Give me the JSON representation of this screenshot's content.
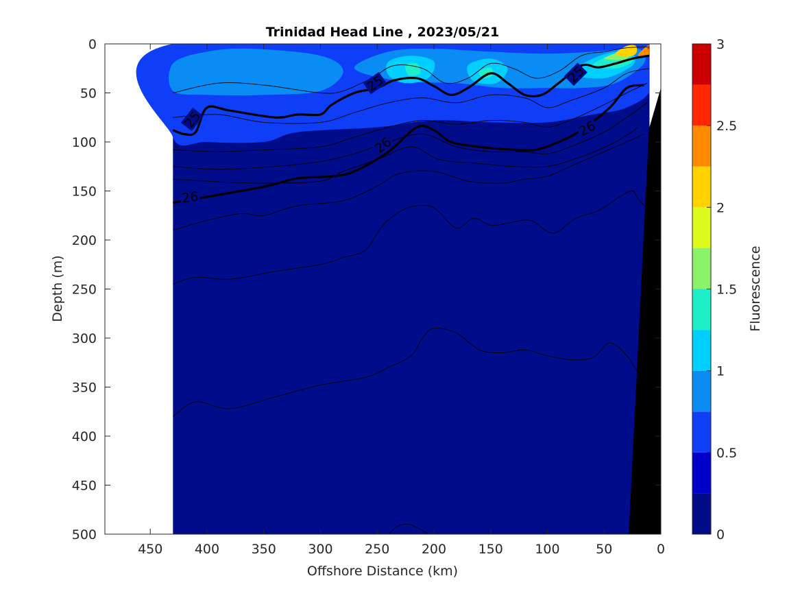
{
  "chart_data": {
    "type": "contour",
    "title": "Trinidad Head Line , 2023/05/21",
    "xlabel": "Offshore Distance (km)",
    "ylabel": "Depth (m)",
    "xlim": [
      490,
      0
    ],
    "ylim": [
      0,
      500
    ],
    "x_direction": "reversed",
    "y_direction": "reversed",
    "x_ticks": [
      450,
      400,
      350,
      300,
      250,
      200,
      150,
      100,
      50,
      0
    ],
    "y_ticks": [
      0,
      50,
      100,
      150,
      200,
      250,
      300,
      350,
      400,
      450,
      500
    ],
    "colorbar": {
      "label": "Fluorescence",
      "range": [
        0,
        3
      ],
      "ticks": [
        "0",
        "0.5",
        "1",
        "1.5",
        "2",
        "2.5",
        "3"
      ],
      "levels": [
        0,
        0.25,
        0.5,
        0.75,
        1,
        1.25,
        1.5,
        1.75,
        2,
        2.25,
        2.5,
        2.75,
        3
      ],
      "colors": [
        "#000c8a",
        "#0000cd",
        "#0f3ef7",
        "#0a8cf5",
        "#00cfff",
        "#1eefc8",
        "#8bf36a",
        "#dcfb1c",
        "#ffd200",
        "#ff8c00",
        "#ff2800",
        "#cc0000"
      ]
    },
    "data_extent_x": [
      430,
      0
    ],
    "fluorescence_patches": [
      {
        "level": 0.5,
        "points": [
          [
            430,
            0
          ],
          [
            8,
            0
          ],
          [
            8,
            45
          ],
          [
            30,
            65
          ],
          [
            60,
            72
          ],
          [
            100,
            80
          ],
          [
            150,
            80
          ],
          [
            200,
            78
          ],
          [
            250,
            85
          ],
          [
            320,
            90
          ],
          [
            350,
            100
          ],
          [
            400,
            100
          ],
          [
            430,
            95
          ]
        ]
      },
      {
        "level": 0.75,
        "points": [
          [
            430,
            20
          ],
          [
            400,
            8
          ],
          [
            360,
            5
          ],
          [
            300,
            12
          ],
          [
            280,
            28
          ],
          [
            300,
            48
          ],
          [
            350,
            52
          ],
          [
            400,
            52
          ],
          [
            430,
            48
          ]
        ]
      },
      {
        "level": 0.75,
        "points": [
          [
            270,
            25
          ],
          [
            240,
            8
          ],
          [
            200,
            5
          ],
          [
            150,
            8
          ],
          [
            100,
            10
          ],
          [
            60,
            8
          ],
          [
            20,
            5
          ],
          [
            15,
            20
          ],
          [
            40,
            40
          ],
          [
            70,
            45
          ],
          [
            100,
            45
          ],
          [
            140,
            45
          ],
          [
            180,
            40
          ],
          [
            230,
            38
          ]
        ]
      },
      {
        "level": 1,
        "points": [
          [
            240,
            18
          ],
          [
            220,
            12
          ],
          [
            200,
            18
          ],
          [
            205,
            35
          ],
          [
            225,
            40
          ],
          [
            240,
            32
          ]
        ]
      },
      {
        "level": 1,
        "points": [
          [
            170,
            22
          ],
          [
            150,
            15
          ],
          [
            135,
            25
          ],
          [
            145,
            40
          ],
          [
            165,
            38
          ]
        ]
      },
      {
        "level": 1,
        "points": [
          [
            80,
            30
          ],
          [
            60,
            15
          ],
          [
            40,
            8
          ],
          [
            25,
            10
          ],
          [
            25,
            22
          ],
          [
            50,
            35
          ]
        ]
      },
      {
        "level": 1.25,
        "points": [
          [
            225,
            22
          ],
          [
            215,
            20
          ],
          [
            212,
            30
          ],
          [
            222,
            32
          ]
        ]
      },
      {
        "level": 1.25,
        "points": [
          [
            160,
            28
          ],
          [
            150,
            24
          ],
          [
            148,
            32
          ],
          [
            157,
            35
          ]
        ]
      },
      {
        "level": 1.25,
        "points": [
          [
            60,
            22
          ],
          [
            45,
            12
          ],
          [
            30,
            10
          ],
          [
            25,
            18
          ],
          [
            40,
            25
          ]
        ]
      },
      {
        "level": 1.5,
        "points": [
          [
            50,
            15
          ],
          [
            35,
            8
          ],
          [
            28,
            10
          ],
          [
            32,
            16
          ]
        ]
      },
      {
        "level": 2,
        "points": [
          [
            40,
            10
          ],
          [
            30,
            2
          ],
          [
            22,
            2
          ],
          [
            22,
            10
          ],
          [
            30,
            13
          ]
        ]
      },
      {
        "level": 2.25,
        "points": [
          [
            20,
            12
          ],
          [
            12,
            2
          ],
          [
            8,
            2
          ],
          [
            8,
            12
          ]
        ]
      },
      {
        "level": 2.5,
        "points": [
          [
            12,
            5
          ],
          [
            8,
            0
          ],
          [
            8,
            5
          ]
        ]
      }
    ],
    "density_contours": [
      {
        "label": "25",
        "bold": true,
        "points": [
          [
            430,
            88
          ],
          [
            420,
            92
          ],
          [
            410,
            90
          ],
          [
            400,
            65
          ],
          [
            380,
            68
          ],
          [
            340,
            75
          ],
          [
            320,
            72
          ],
          [
            300,
            72
          ],
          [
            290,
            62
          ],
          [
            270,
            50
          ],
          [
            250,
            45
          ],
          [
            235,
            37
          ],
          [
            215,
            35
          ],
          [
            200,
            43
          ],
          [
            185,
            52
          ],
          [
            170,
            45
          ],
          [
            150,
            30
          ],
          [
            135,
            40
          ],
          [
            120,
            52
          ],
          [
            105,
            52
          ],
          [
            90,
            40
          ],
          [
            70,
            22
          ],
          [
            55,
            24
          ],
          [
            40,
            20
          ],
          [
            25,
            15
          ],
          [
            10,
            12
          ]
        ]
      },
      {
        "label": "26",
        "bold": true,
        "points": [
          [
            430,
            162
          ],
          [
            400,
            156
          ],
          [
            360,
            148
          ],
          [
            340,
            143
          ],
          [
            320,
            137
          ],
          [
            290,
            135
          ],
          [
            270,
            130
          ],
          [
            240,
            110
          ],
          [
            215,
            85
          ],
          [
            200,
            88
          ],
          [
            185,
            100
          ],
          [
            160,
            105
          ],
          [
            130,
            108
          ],
          [
            110,
            108
          ],
          [
            90,
            100
          ],
          [
            70,
            88
          ],
          [
            45,
            65
          ],
          [
            30,
            45
          ],
          [
            15,
            42
          ]
        ]
      },
      {
        "label": "",
        "bold": false,
        "points": [
          [
            430,
            50
          ],
          [
            390,
            40
          ],
          [
            350,
            42
          ],
          [
            300,
            50
          ],
          [
            280,
            48
          ],
          [
            255,
            35
          ],
          [
            235,
            22
          ],
          [
            210,
            25
          ],
          [
            190,
            40
          ],
          [
            170,
            35
          ],
          [
            150,
            20
          ],
          [
            130,
            25
          ],
          [
            110,
            35
          ],
          [
            90,
            28
          ],
          [
            70,
            12
          ],
          [
            50,
            8
          ],
          [
            30,
            4
          ],
          [
            10,
            3
          ]
        ]
      },
      {
        "label": "",
        "bold": false,
        "points": [
          [
            430,
            75
          ],
          [
            390,
            72
          ],
          [
            350,
            80
          ],
          [
            300,
            80
          ],
          [
            270,
            70
          ],
          [
            240,
            60
          ],
          [
            210,
            55
          ],
          [
            180,
            60
          ],
          [
            150,
            52
          ],
          [
            120,
            55
          ],
          [
            100,
            65
          ],
          [
            80,
            58
          ],
          [
            50,
            45
          ],
          [
            30,
            30
          ],
          [
            10,
            25
          ]
        ]
      },
      {
        "label": "",
        "bold": false,
        "points": [
          [
            430,
            108
          ],
          [
            390,
            110
          ],
          [
            350,
            108
          ],
          [
            300,
            105
          ],
          [
            270,
            95
          ],
          [
            240,
            85
          ],
          [
            210,
            78
          ],
          [
            180,
            82
          ],
          [
            150,
            78
          ],
          [
            120,
            80
          ],
          [
            100,
            85
          ],
          [
            80,
            78
          ],
          [
            50,
            62
          ],
          [
            30,
            50
          ],
          [
            12,
            40
          ]
        ]
      },
      {
        "label": "",
        "bold": false,
        "points": [
          [
            430,
            125
          ],
          [
            390,
            128
          ],
          [
            340,
            125
          ],
          [
            300,
            120
          ],
          [
            270,
            112
          ],
          [
            240,
            100
          ],
          [
            210,
            92
          ],
          [
            180,
            105
          ],
          [
            150,
            110
          ],
          [
            120,
            110
          ],
          [
            100,
            112
          ],
          [
            80,
            105
          ],
          [
            50,
            90
          ],
          [
            30,
            75
          ],
          [
            12,
            60
          ]
        ]
      },
      {
        "label": "",
        "bold": false,
        "points": [
          [
            430,
            138
          ],
          [
            400,
            140
          ],
          [
            350,
            142
          ],
          [
            300,
            140
          ],
          [
            280,
            130
          ],
          [
            250,
            118
          ],
          [
            220,
            105
          ],
          [
            195,
            118
          ],
          [
            160,
            122
          ],
          [
            130,
            125
          ],
          [
            100,
            125
          ],
          [
            70,
            115
          ],
          [
            40,
            100
          ],
          [
            20,
            85
          ]
        ]
      },
      {
        "label": "",
        "bold": false,
        "points": [
          [
            430,
            190
          ],
          [
            400,
            180
          ],
          [
            370,
            173
          ],
          [
            350,
            175
          ],
          [
            320,
            165
          ],
          [
            280,
            160
          ],
          [
            250,
            145
          ],
          [
            230,
            132
          ],
          [
            200,
            130
          ],
          [
            170,
            140
          ],
          [
            140,
            142
          ],
          [
            120,
            138
          ],
          [
            100,
            135
          ],
          [
            80,
            125
          ],
          [
            50,
            110
          ],
          [
            30,
            100
          ],
          [
            15,
            92
          ]
        ]
      },
      {
        "label": "",
        "bold": false,
        "points": [
          [
            430,
            245
          ],
          [
            410,
            238
          ],
          [
            380,
            240
          ],
          [
            340,
            232
          ],
          [
            300,
            225
          ],
          [
            280,
            218
          ],
          [
            260,
            210
          ],
          [
            245,
            185
          ],
          [
            225,
            168
          ],
          [
            205,
            165
          ],
          [
            195,
            172
          ],
          [
            180,
            188
          ],
          [
            165,
            178
          ],
          [
            150,
            185
          ],
          [
            135,
            183
          ],
          [
            115,
            180
          ],
          [
            95,
            193
          ],
          [
            75,
            178
          ],
          [
            55,
            170
          ],
          [
            35,
            155
          ],
          [
            25,
            150
          ],
          [
            20,
            158
          ],
          [
            12,
            168
          ]
        ]
      },
      {
        "label": "",
        "bold": false,
        "points": [
          [
            430,
            380
          ],
          [
            410,
            365
          ],
          [
            380,
            372
          ],
          [
            340,
            360
          ],
          [
            300,
            348
          ],
          [
            260,
            340
          ],
          [
            240,
            330
          ],
          [
            220,
            318
          ],
          [
            210,
            300
          ],
          [
            200,
            290
          ],
          [
            180,
            295
          ],
          [
            160,
            312
          ],
          [
            140,
            315
          ],
          [
            120,
            312
          ],
          [
            100,
            318
          ],
          [
            80,
            322
          ],
          [
            60,
            320
          ],
          [
            45,
            305
          ],
          [
            30,
            318
          ],
          [
            18,
            340
          ]
        ]
      },
      {
        "label": "",
        "bold": false,
        "points": [
          [
            240,
            500
          ],
          [
            232,
            492
          ],
          [
            222,
            490
          ],
          [
            212,
            495
          ],
          [
            205,
            500
          ]
        ]
      }
    ],
    "bathymetry": [
      [
        28,
        500
      ],
      [
        0,
        500
      ],
      [
        0,
        0
      ],
      [
        10,
        0
      ],
      [
        10,
        85
      ],
      [
        28,
        500
      ]
    ],
    "bathymetry_white_wedge": [
      [
        10,
        0
      ],
      [
        0,
        0
      ],
      [
        0,
        45
      ],
      [
        10,
        85
      ]
    ]
  }
}
